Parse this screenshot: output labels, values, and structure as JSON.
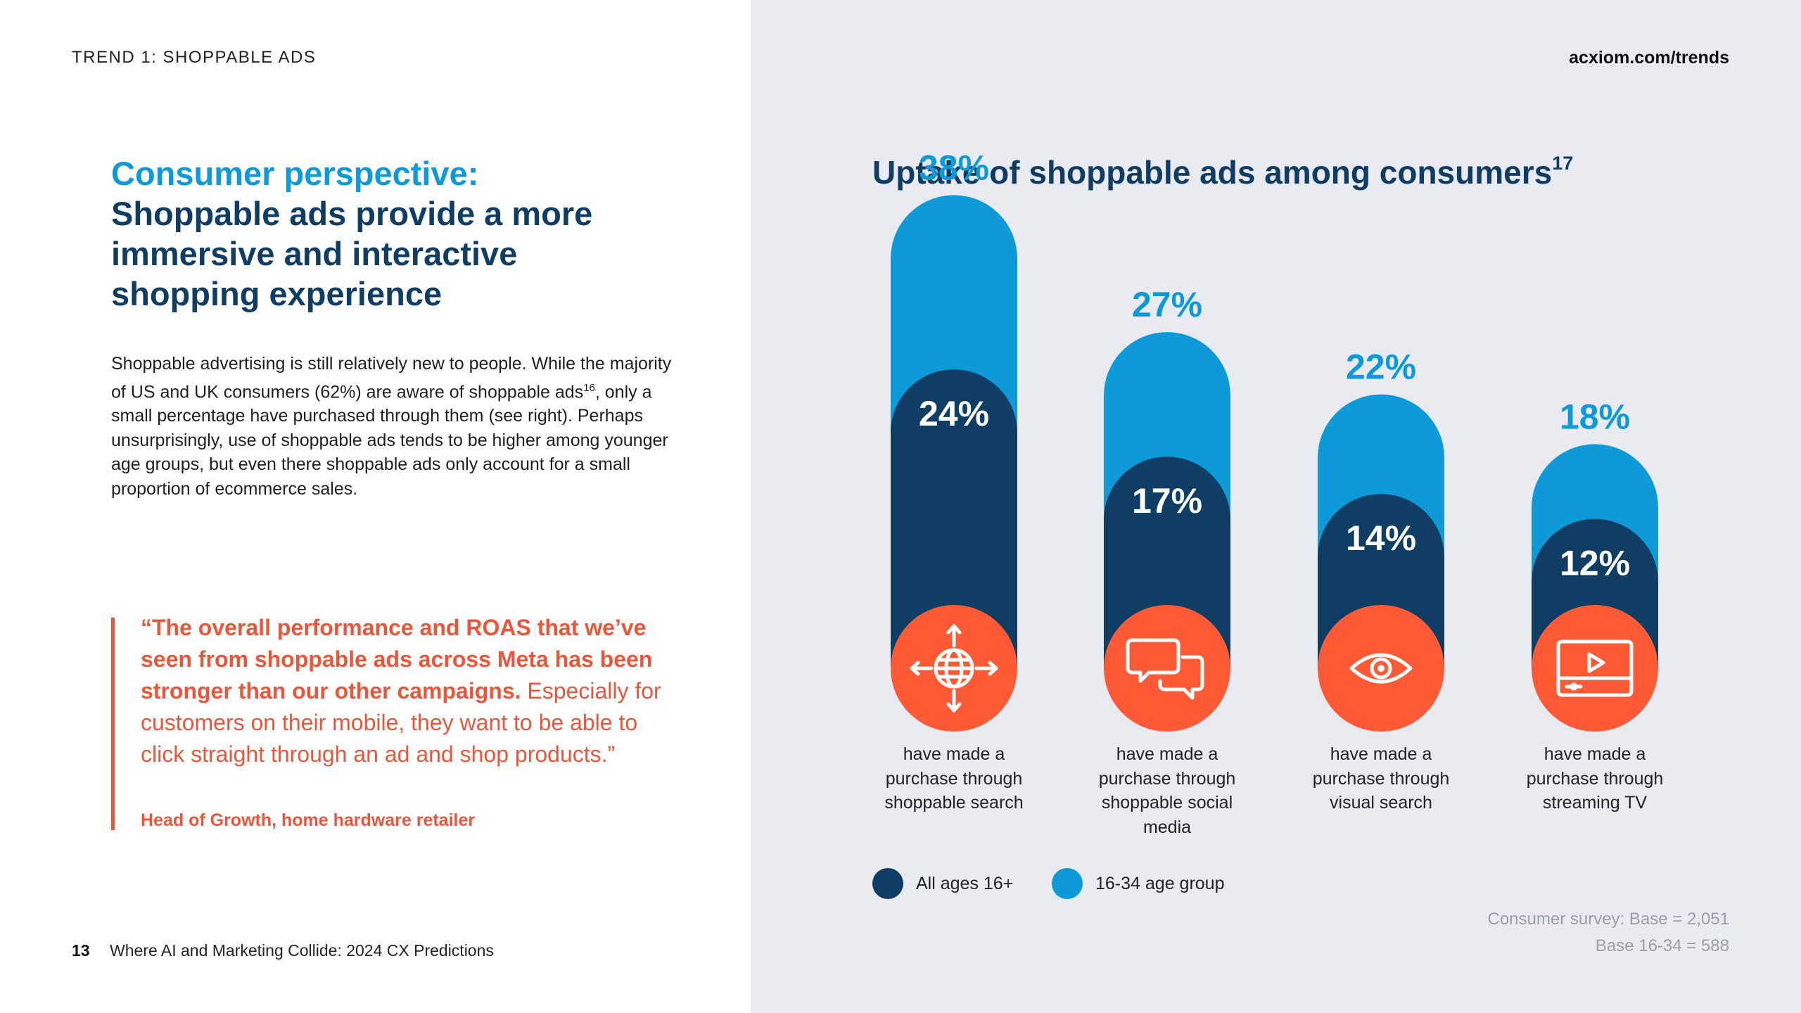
{
  "header": {
    "section_label": "TREND 1: SHOPPABLE ADS",
    "site_url": "acxiom.com/trends"
  },
  "left": {
    "headline_accent": "Consumer perspective:",
    "headline_main": "Shoppable ads provide a more immersive and interactive shopping experience",
    "body_part1": "Shoppable advertising is still relatively new to people. While the majority of US and UK consumers (62%) are aware of shoppable ads",
    "body_sup": "16",
    "body_part2": ", only a small percentage have purchased through them (see right). Perhaps unsurprisingly, use of shoppable ads tends to be higher among younger age groups, but even there shoppable ads only account for a small proportion of ecommerce sales.",
    "quote_bold": "“The overall performance and ROAS that we’ve seen from shoppable ads across Meta has been stronger than our other campaigns.",
    "quote_regular": " Especially for customers on their mobile, they want to be able to click straight through an ad and shop products.”",
    "quote_attribution": "Head of Growth, home hardware retailer"
  },
  "footer": {
    "page_number": "13",
    "doc_title": "Where AI and Marketing Collide: 2024 CX Predictions"
  },
  "chart_title": "Uptake of shoppable ads among consumers",
  "chart_title_sup": "17",
  "colors": {
    "navy": "#0f3d63",
    "light_blue": "#0e9ad9",
    "orange": "#ff5a36",
    "panel_bg": "#e9ebf0"
  },
  "chart_data": {
    "type": "bar",
    "title": "Uptake of shoppable ads among consumers",
    "categories": [
      "have made a purchase through shoppable search",
      "have made a purchase through shoppable social media",
      "have made a purchase through visual search",
      "have made a purchase through streaming TV"
    ],
    "series": [
      {
        "name": "All ages 16+",
        "values": [
          24,
          17,
          14,
          12
        ],
        "color": "#0f3d63"
      },
      {
        "name": "16-34 age group",
        "values": [
          38,
          27,
          22,
          18
        ],
        "color": "#0e9ad9"
      }
    ],
    "value_labels": {
      "all": [
        "24%",
        "17%",
        "14%",
        "12%"
      ],
      "young": [
        "38%",
        "27%",
        "22%",
        "18%"
      ]
    },
    "icons": [
      "target-globe-icon",
      "chat-bubbles-icon",
      "eye-icon",
      "video-player-icon"
    ],
    "legend": [
      "All ages 16+",
      "16-34 age group"
    ],
    "legend_position": "bottom-left"
  },
  "survey_note": {
    "line1": "Consumer survey: Base = 2,051",
    "line2": "Base 16-34 = 588"
  }
}
